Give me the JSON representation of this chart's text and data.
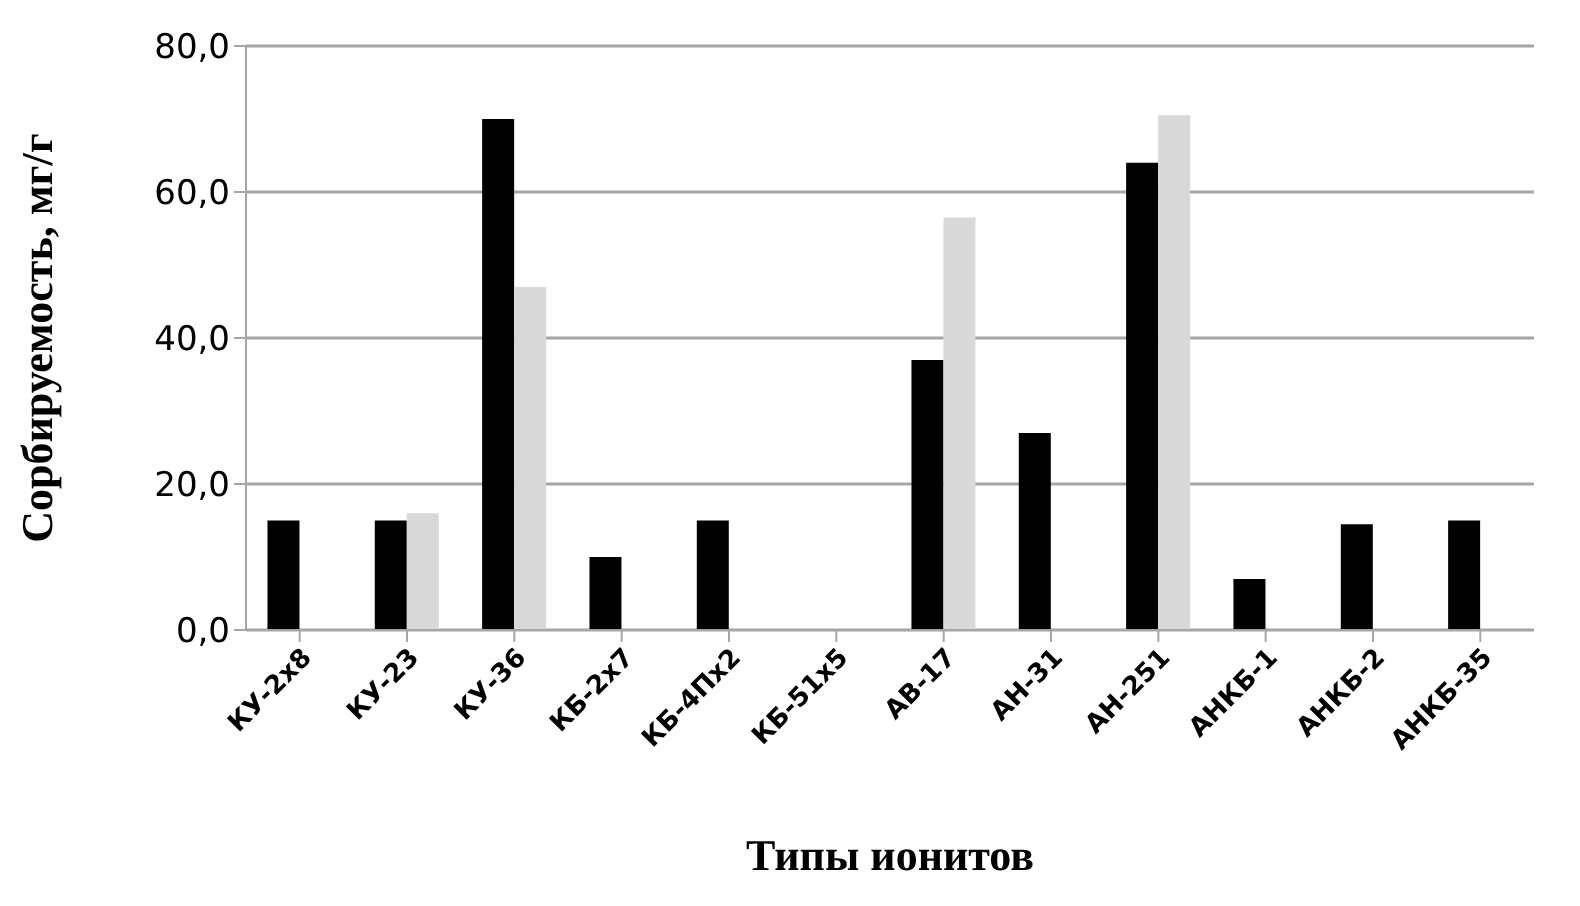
{
  "chart_data": {
    "type": "bar",
    "xlabel": "Типы ионитов",
    "ylabel": "Сорбируемость,  мг/г",
    "categories": [
      "КУ-2х8",
      "КУ-23",
      "КУ-36",
      "КБ-2х7",
      "КБ-4Пх2",
      "КБ-51х5",
      "АВ-17",
      "АН-31",
      "АН-251",
      "АНКБ-1",
      "АНКБ-2",
      "АНКБ-35"
    ],
    "series": [
      {
        "color": "#000000",
        "values": [
          15,
          15,
          70,
          10,
          15,
          0,
          37,
          27,
          64,
          7,
          14.5,
          15
        ]
      },
      {
        "color": "#d9d9d9",
        "values": [
          null,
          16,
          47,
          null,
          null,
          null,
          56.5,
          null,
          70.5,
          null,
          null,
          null
        ]
      }
    ],
    "ylim": [
      0,
      80
    ],
    "yticks": [
      {
        "value": 0,
        "label": "0,0"
      },
      {
        "value": 20,
        "label": "20,0"
      },
      {
        "value": 40,
        "label": "40,0"
      },
      {
        "value": 60,
        "label": "60,0"
      },
      {
        "value": 80,
        "label": "80,0"
      }
    ],
    "grid": "y",
    "legend": false
  }
}
